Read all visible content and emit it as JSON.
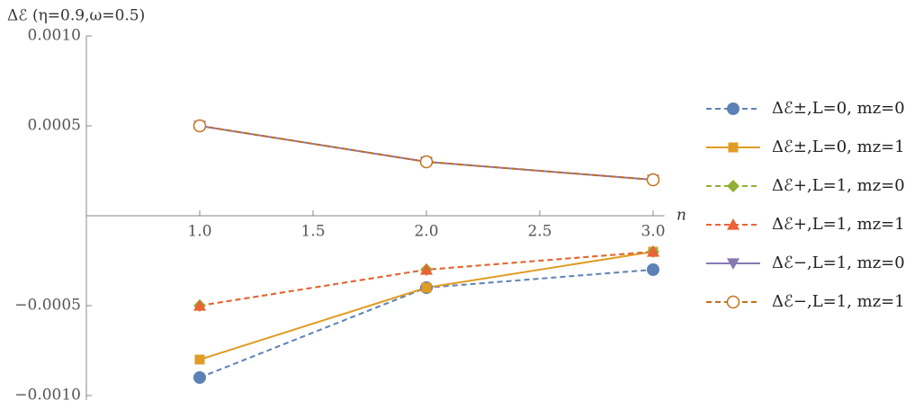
{
  "chart_data": {
    "type": "line",
    "y_label": "Δℰ (η=0.9,ω=0.5)",
    "x_label": "n",
    "x": [
      1,
      2,
      3
    ],
    "xlim": [
      0.5,
      3.05
    ],
    "ylim": [
      -0.001,
      0.001
    ],
    "xticks": [
      {
        "value": 1,
        "label": "1.0"
      },
      {
        "value": 1.5,
        "label": "1.5"
      },
      {
        "value": 2,
        "label": "2.0"
      },
      {
        "value": 2.5,
        "label": "2.5"
      },
      {
        "value": 3,
        "label": "3.0"
      }
    ],
    "yticks": [
      {
        "value": 0.001,
        "label": "0.0010"
      },
      {
        "value": 0.0005,
        "label": "0.0005"
      },
      {
        "value": -0.0005,
        "label": "−0.0005"
      },
      {
        "value": -0.001,
        "label": "−0.0010"
      }
    ],
    "legend": "right",
    "series": [
      {
        "name": "Δℰ±,L=0, mz=0",
        "color": "#5e81b5",
        "marker": "circle",
        "dashed": true,
        "values": [
          -0.0009,
          -0.0004,
          -0.0003
        ]
      },
      {
        "name": "Δℰ±,L=0, mz=1",
        "color": "#e19c24",
        "marker": "square",
        "dashed": false,
        "values": [
          -0.0008,
          -0.0004,
          -0.0002
        ]
      },
      {
        "name": "Δℰ+,L=1, mz=0",
        "color": "#8fb032",
        "marker": "diamond",
        "dashed": true,
        "values": [
          -0.0005,
          -0.0003,
          -0.0002
        ]
      },
      {
        "name": "Δℰ+,L=1, mz=1",
        "color": "#eb6235",
        "marker": "triangle",
        "dashed": true,
        "values": [
          -0.0005,
          -0.0003,
          -0.0002
        ]
      },
      {
        "name": "Δℰ−,L=1, mz=0",
        "color": "#8778b3",
        "marker": "down-triangle",
        "dashed": false,
        "values": [
          0.0005,
          0.0003,
          0.0002
        ]
      },
      {
        "name": "Δℰ−,L=1, mz=1",
        "color": "#c56e1a",
        "marker": "open-circle",
        "dashed": true,
        "values": [
          0.0005,
          0.0003,
          0.0002
        ]
      }
    ]
  }
}
